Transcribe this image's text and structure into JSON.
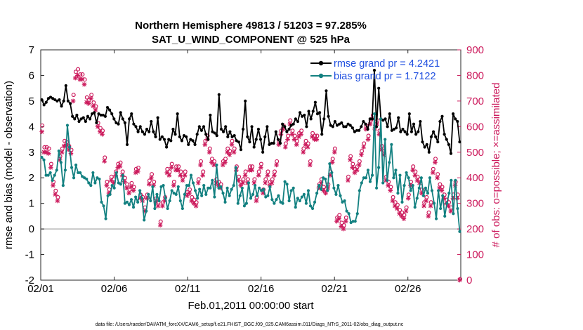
{
  "chart_data": {
    "type": "line",
    "title": "Northern Hemisphere 49813 / 51203 = 97.285%",
    "subtitle": "SAT_U_WIND_COMPONENT @ 525 hPa",
    "xlabel": "Feb.01,2011 00:00:00 start",
    "ylabel_left": "rmse and bias (model - observation)",
    "ylabel_right": "# of obs: o=possible; ×=assimilated",
    "xlim": [
      0,
      28.6
    ],
    "ylim_left": [
      -2,
      7
    ],
    "ylim_right": [
      0,
      900
    ],
    "x_ticks": [
      0,
      5,
      10,
      15,
      20,
      25
    ],
    "x_tick_labels": [
      "02/01",
      "02/06",
      "02/11",
      "02/16",
      "02/21",
      "02/26"
    ],
    "y_ticks_left": [
      -2,
      -1,
      0,
      1,
      2,
      3,
      4,
      5,
      6,
      7
    ],
    "y_ticks_right": [
      0,
      100,
      200,
      300,
      400,
      500,
      600,
      700,
      800,
      900
    ],
    "colors": {
      "rmse": "#000000",
      "bias": "#128080",
      "obs": "#cc1a5c",
      "zero_line": "#b8b8b8",
      "legend_text": "#1f4fe0"
    },
    "legend": [
      {
        "label": "rmse grand pr = 4.2421",
        "color": "#000000"
      },
      {
        "label": "bias grand pr = 1.7122",
        "color": "#128080"
      }
    ],
    "series": [
      {
        "name": "rmse",
        "axis": "left",
        "values": [
          5.05,
          4.85,
          4.95,
          5.1,
          5.15,
          5.1,
          5.05,
          5.0,
          5.05,
          4.8,
          5.0,
          5.6,
          5.0,
          4.9,
          4.4,
          4.3,
          4.45,
          4.2,
          4.3,
          4.35,
          4.2,
          4.4,
          4.3,
          4.5,
          4.55,
          4.15,
          4.5,
          4.45,
          4.45,
          4.4,
          4.75,
          4.65,
          4.5,
          4.3,
          4.15,
          4.1,
          4.55,
          4.3,
          4.15,
          3.3,
          4.3,
          4.5,
          4.1,
          4.0,
          3.8,
          4.0,
          3.8,
          3.7,
          3.9,
          3.8,
          4.2,
          3.8,
          3.6,
          4.35,
          3.5,
          3.6,
          3.5,
          3.2,
          3.5,
          3.45,
          3.9,
          3.7,
          4.5,
          3.6,
          3.45,
          3.65,
          3.6,
          3.3,
          3.5,
          3.45,
          3.3,
          3.7,
          4.0,
          3.85,
          4.0,
          3.7,
          3.5,
          4.45,
          3.8,
          3.75,
          3.65,
          5.25,
          3.9,
          3.8,
          4.0,
          3.6,
          3.8,
          3.6,
          3.65,
          3.45,
          3.4,
          3.1,
          3.9,
          5.0,
          3.6,
          3.4,
          4.0,
          3.2,
          3.5,
          3.9,
          3.5,
          3.0,
          3.6,
          4.0,
          3.3,
          3.35,
          3.35,
          3.8,
          3.5,
          3.35,
          4.1,
          4.0,
          3.8,
          3.9,
          4.05,
          4.1,
          4.3,
          4.2,
          4.55,
          4.4,
          4.45,
          4.0,
          4.6,
          4.3,
          4.6,
          4.95,
          4.5,
          4.55,
          3.7,
          4.3,
          5.4,
          4.4,
          4.05,
          4.0,
          4.2,
          4.05,
          4.1,
          4.15,
          4.0,
          4.0,
          4.1,
          4.05,
          3.95,
          3.8,
          3.85,
          3.85,
          4.0,
          4.2,
          4.1,
          3.9,
          4.3,
          4.3,
          6.2,
          4.0,
          5.5,
          4.3,
          4.25,
          4.3,
          4.0,
          4.5,
          3.85,
          3.9,
          3.95,
          4.35,
          3.8,
          3.9,
          3.8,
          3.7,
          4.5,
          3.8,
          4.1,
          3.7,
          3.8,
          4.2,
          3.4,
          3.2,
          3.3,
          3.0,
          3.6,
          3.8,
          3.6,
          3.4,
          4.2,
          4.4,
          3.7,
          3.5,
          3.3,
          2.95,
          4.5,
          4.3,
          4.2,
          3.4
        ]
      },
      {
        "name": "bias",
        "axis": "left",
        "values": [
          2.8,
          2.7,
          2.1,
          2.1,
          2.2,
          1.9,
          2.1,
          2.3,
          3.05,
          2.6,
          1.7,
          2.3,
          4.05,
          3.2,
          2.4,
          2.0,
          2.5,
          2.2,
          2.2,
          2.05,
          2.0,
          1.95,
          1.8,
          1.7,
          2.2,
          1.8,
          2.0,
          1.95,
          1.05,
          0.9,
          0.4,
          1.3,
          1.35,
          1.7,
          1.6,
          2.2,
          1.8,
          1.75,
          2.1,
          1.0,
          1.05,
          0.95,
          1.15,
          0.85,
          1.25,
          1.05,
          1.5,
          1.2,
          0.35,
          0.7,
          1.35,
          1.1,
          1.65,
          0.8,
          1.35,
          1.1,
          1.65,
          1.7,
          1.2,
          0.8,
          1.1,
          1.5,
          1.4,
          1.35,
          1.65,
          1.1,
          0.8,
          1.35,
          1.7,
          1.7,
          2.1,
          1.8,
          1.5,
          1.2,
          1.55,
          1.3,
          1.7,
          1.35,
          1.6,
          1.6,
          1.9,
          1.25,
          2.5,
          1.6,
          1.65,
          1.4,
          1.05,
          1.6,
          1.3,
          1.55,
          1.7,
          2.4,
          1.0,
          1.3,
          1.6,
          0.9,
          1.0,
          1.8,
          1.2,
          1.35,
          1.7,
          1.3,
          1.6,
          1.5,
          1.55,
          1.25,
          1.3,
          1.65,
          1.15,
          1.0,
          1.15,
          1.3,
          1.05,
          1.0,
          1.85,
          1.75,
          1.1,
          1.5,
          1.6,
          0.85,
          1.2,
          1.1,
          1.25,
          1.35,
          1.0,
          1.5,
          0.9,
          0.8,
          1.05,
          1.4,
          1.7,
          1.55,
          2.0,
          1.95,
          1.5,
          2.55,
          2.2,
          1.6,
          1.35,
          1.7,
          1.3,
          1.05,
          1.1,
          0.7,
          0.6,
          0.25,
          0.3,
          0.3,
          0.6,
          1.5,
          1.8,
          2.0,
          2.0,
          2.3,
          1.85,
          2.1,
          4.5,
          1.6,
          2.4,
          4.3,
          1.8,
          3.5,
          1.9,
          2.6,
          3.3,
          2.0,
          2.3,
          1.4,
          2.1,
          1.05,
          1.7,
          2.2,
          2.0,
          1.5,
          1.7,
          0.85,
          1.2,
          1.6,
          2.0,
          1.3,
          1.6,
          1.4,
          2.0,
          1.5,
          1.0,
          0.4,
          1.5,
          0.8,
          1.3,
          0.5,
          1.0,
          1.4,
          1.9,
          0.6,
          1.9,
          0.8,
          -0.1
        ]
      },
      {
        "name": "obs possible",
        "axis": "right",
        "marker": "o",
        "values": [
          600,
          515,
          515,
          510,
          450,
          380,
          345,
          320,
          480,
          510,
          540,
          535,
          520,
          505,
          720,
          810,
          820,
          800,
          800,
          780,
          710,
          700,
          720,
          690,
          675,
          610,
          590,
          580,
          475,
          380,
          350,
          400,
          390,
          420,
          450,
          455,
          420,
          395,
          370,
          350,
          375,
          360,
          430,
          435,
          330,
          320,
          280,
          330,
          385,
          410,
          380,
          315,
          300,
          225,
          300,
          320,
          430,
          420,
          450,
          380,
          440,
          440,
          420,
          400,
          420,
          340,
          350,
          320,
          310,
          300,
          390,
          460,
          420,
          540,
          560,
          510,
          470,
          460,
          390,
          380,
          370,
          460,
          470,
          510,
          500,
          540,
          510,
          440,
          400,
          380,
          390,
          420,
          390,
          440,
          440,
          390,
          320,
          420,
          450,
          350,
          390,
          420,
          380,
          390,
          420,
          460,
          540,
          580,
          600,
          530,
          560,
          620,
          580,
          560,
          540,
          570,
          580,
          510,
          540,
          530,
          460,
          570,
          560,
          560,
          370,
          390,
          360,
          350,
          370,
          420,
          470,
          510,
          240,
          250,
          220,
          210,
          240,
          400,
          480,
          450,
          430,
          440,
          460,
          500,
          530,
          600,
          560,
          620,
          640,
          600,
          620,
          580,
          520,
          500,
          400,
          380,
          360,
          320,
          300,
          290,
          270,
          260,
          250,
          280,
          330,
          380,
          440,
          420,
          400,
          390,
          350,
          300,
          320,
          260,
          300,
          430,
          470,
          410,
          370,
          360,
          330,
          310,
          300,
          280,
          330,
          380,
          330,
          0
        ]
      },
      {
        "name": "obs assimilated",
        "axis": "right",
        "marker": "x",
        "values": [
          580,
          500,
          500,
          495,
          440,
          370,
          335,
          310,
          470,
          500,
          525,
          525,
          510,
          495,
          700,
          790,
          800,
          785,
          785,
          765,
          695,
          690,
          710,
          680,
          665,
          600,
          580,
          570,
          465,
          370,
          340,
          390,
          380,
          410,
          440,
          445,
          410,
          385,
          360,
          340,
          365,
          350,
          420,
          425,
          320,
          310,
          270,
          320,
          375,
          400,
          370,
          305,
          290,
          215,
          290,
          310,
          420,
          410,
          440,
          370,
          430,
          430,
          410,
          390,
          410,
          330,
          340,
          310,
          300,
          290,
          380,
          450,
          410,
          530,
          550,
          500,
          460,
          450,
          380,
          370,
          360,
          450,
          460,
          500,
          490,
          530,
          500,
          430,
          390,
          370,
          380,
          410,
          380,
          430,
          430,
          380,
          310,
          410,
          440,
          340,
          380,
          410,
          370,
          380,
          410,
          450,
          530,
          570,
          590,
          520,
          550,
          610,
          570,
          550,
          530,
          560,
          570,
          500,
          530,
          520,
          450,
          560,
          550,
          550,
          360,
          380,
          350,
          340,
          360,
          410,
          460,
          500,
          230,
          240,
          210,
          200,
          230,
          390,
          470,
          440,
          420,
          430,
          450,
          490,
          520,
          590,
          550,
          610,
          630,
          590,
          610,
          570,
          510,
          490,
          390,
          370,
          350,
          310,
          290,
          280,
          260,
          250,
          240,
          270,
          320,
          370,
          430,
          410,
          390,
          380,
          340,
          290,
          310,
          250,
          290,
          420,
          460,
          400,
          360,
          350,
          320,
          300,
          290,
          270,
          320,
          370,
          320,
          0
        ]
      }
    ]
  },
  "footer": "data file: /Users/raeder/DAI/ATM_forcXX/CAM6_setup/f.e21.FHIST_BGC.f09_025.CAM6assim.011/Diags_NTrS_2011-02/obs_diag_output.nc"
}
